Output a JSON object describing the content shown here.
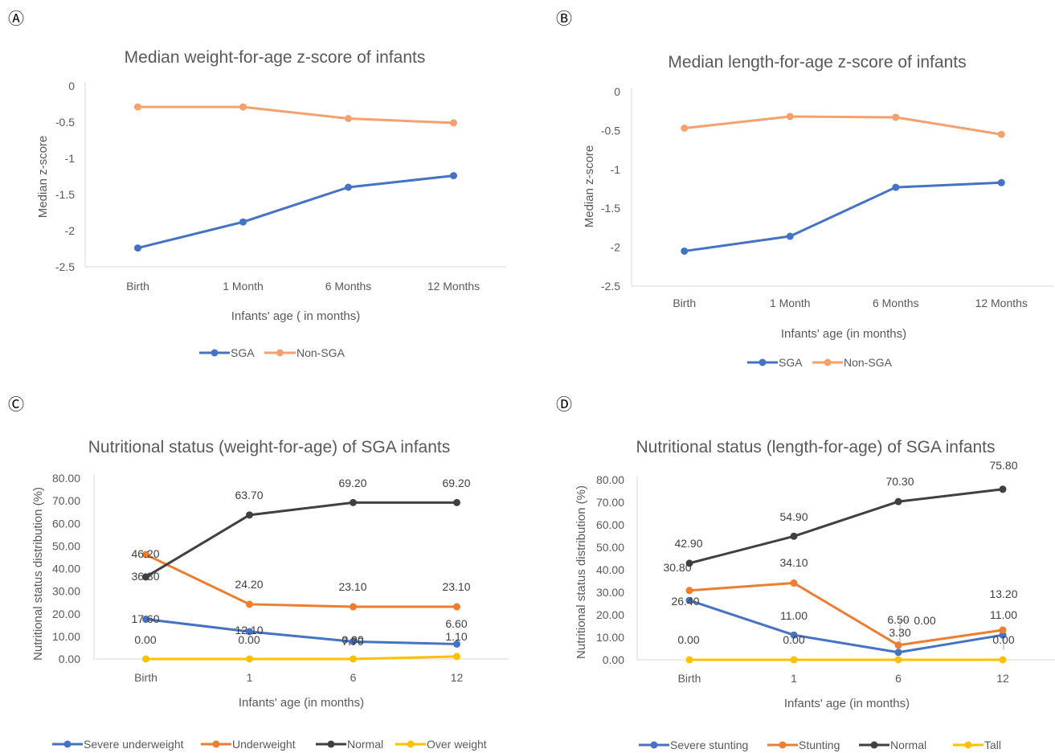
{
  "chart_data": [
    {
      "panel": "Ⓐ",
      "type": "line",
      "title": "Median weight-for-age z-score of infants",
      "xlabel": "Infants' age ( in months)",
      "ylabel": "Median z-score",
      "categories": [
        "Birth",
        "1 Month",
        "6 Months",
        "12 Months"
      ],
      "ylim": [
        -2.5,
        0
      ],
      "yticks": [
        "0",
        "-0.5",
        "-1",
        "-1.5",
        "-2",
        "-2.5"
      ],
      "legend_position": "bottom",
      "series": [
        {
          "name": "SGA",
          "color": "#4472C4",
          "values": [
            -2.24,
            -1.88,
            -1.4,
            -1.24
          ]
        },
        {
          "name": "Non-SGA",
          "color": "#F4A16E",
          "values": [
            -0.29,
            -0.29,
            -0.45,
            -0.51
          ]
        }
      ]
    },
    {
      "panel": "Ⓑ",
      "type": "line",
      "title": "Median length-for-age z-score of infants",
      "xlabel": "Infants' age (in months)",
      "ylabel": "Median z-score",
      "categories": [
        "Birth",
        "1 Month",
        "6 Months",
        "12 Months"
      ],
      "ylim": [
        -2.5,
        0
      ],
      "yticks": [
        "0",
        "-0.5",
        "-1",
        "-1.5",
        "-2",
        "-2.5"
      ],
      "legend_position": "bottom",
      "series": [
        {
          "name": "SGA",
          "color": "#4472C4",
          "values": [
            -2.05,
            -1.86,
            -1.23,
            -1.17
          ]
        },
        {
          "name": "Non-SGA",
          "color": "#F4A16E",
          "values": [
            -0.47,
            -0.32,
            -0.33,
            -0.55
          ]
        }
      ]
    },
    {
      "panel": "Ⓒ",
      "type": "line",
      "title": "Nutritional status (weight-for-age) of SGA infants",
      "xlabel": "Infants' age (in months)",
      "ylabel": "Nutritional status distribution (%)",
      "categories": [
        "Birth",
        "1",
        "6",
        "12"
      ],
      "ylim": [
        0,
        80
      ],
      "yticks": [
        "80.00",
        "70.00",
        "60.00",
        "50.00",
        "40.00",
        "30.00",
        "20.00",
        "10.00",
        "0.00"
      ],
      "legend_position": "bottom",
      "series": [
        {
          "name": "Severe underweight",
          "color": "#4472C4",
          "values": [
            17.6,
            12.1,
            7.7,
            6.6
          ],
          "labels": [
            "17.60",
            "12.10",
            "7.70",
            "6.60"
          ]
        },
        {
          "name": "Underweight",
          "color": "#ED7D31",
          "values": [
            46.2,
            24.2,
            23.1,
            23.1
          ],
          "labels": [
            "46.20",
            "24.20",
            "23.10",
            "23.10"
          ]
        },
        {
          "name": "Normal",
          "color": "#404040",
          "values": [
            36.3,
            63.7,
            69.2,
            69.2
          ],
          "labels": [
            "36.30",
            "63.70",
            "69.20",
            "69.20"
          ]
        },
        {
          "name": "Over weight",
          "color": "#FFC000",
          "values": [
            0.0,
            0.0,
            0.0,
            1.1
          ],
          "labels": [
            "0.00",
            "0.00",
            "0.00",
            "1.10"
          ]
        }
      ]
    },
    {
      "panel": "Ⓓ",
      "type": "line",
      "title": "Nutritional status (length-for-age) of SGA infants",
      "xlabel": "Infants' age (in months)",
      "ylabel": "Nutritional status distribution (%)",
      "categories": [
        "Birth",
        "1",
        "6",
        "12"
      ],
      "ylim": [
        0,
        80
      ],
      "yticks": [
        "80.00",
        "70.00",
        "60.00",
        "50.00",
        "40.00",
        "30.00",
        "20.00",
        "10.00",
        "0.00"
      ],
      "legend_position": "bottom",
      "series": [
        {
          "name": "Severe stunting",
          "color": "#4472C4",
          "values": [
            26.4,
            11.0,
            3.3,
            11.0
          ],
          "labels": [
            "26.40",
            "11.00",
            "3.30",
            "11.00"
          ]
        },
        {
          "name": "Stunting",
          "color": "#ED7D31",
          "values": [
            30.8,
            34.1,
            6.5,
            13.2
          ],
          "labels": [
            "30.80",
            "34.10",
            "6.50",
            "13.20"
          ]
        },
        {
          "name": "Normal",
          "color": "#404040",
          "values": [
            42.9,
            54.9,
            70.3,
            75.8
          ],
          "labels": [
            "42.90",
            "54.90",
            "70.30",
            "75.80"
          ]
        },
        {
          "name": "Tall",
          "color": "#FFC000",
          "values": [
            0.0,
            0.0,
            0.0,
            0.0
          ],
          "labels": [
            "0.00",
            "0.00",
            "0.00",
            "0.00"
          ]
        }
      ]
    }
  ]
}
